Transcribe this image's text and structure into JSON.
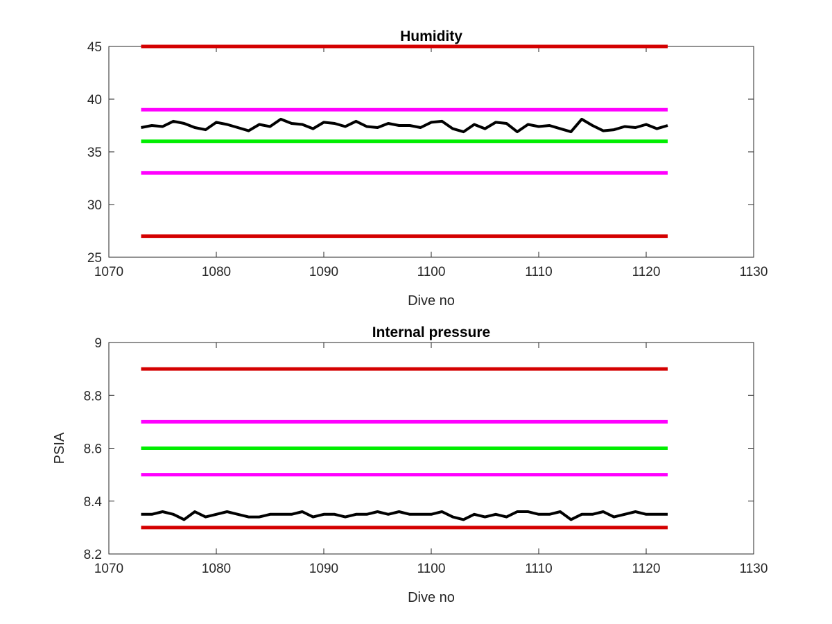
{
  "chart_data": [
    {
      "type": "line",
      "title": "Humidity",
      "xlabel": "Dive no",
      "ylabel": "",
      "xlim": [
        1070,
        1130
      ],
      "ylim": [
        25,
        45
      ],
      "xticks": [
        "1070",
        "1080",
        "1090",
        "1100",
        "1110",
        "1120",
        "1130"
      ],
      "yticks": [
        "25",
        "30",
        "35",
        "40",
        "45"
      ],
      "grid": false,
      "thresholds": [
        {
          "value": 45,
          "color": "#d40000",
          "x": [
            1073,
            1122
          ]
        },
        {
          "value": 39,
          "color": "#ff00ff",
          "x": [
            1073,
            1122
          ]
        },
        {
          "value": 36,
          "color": "#00ee00",
          "x": [
            1073,
            1122
          ]
        },
        {
          "value": 33,
          "color": "#ff00ff",
          "x": [
            1073,
            1122
          ]
        },
        {
          "value": 27,
          "color": "#d40000",
          "x": [
            1073,
            1122
          ]
        }
      ],
      "series": [
        {
          "color": "#000000",
          "x": [
            1073,
            1074,
            1075,
            1076,
            1077,
            1078,
            1079,
            1080,
            1081,
            1082,
            1083,
            1084,
            1085,
            1086,
            1087,
            1088,
            1089,
            1090,
            1091,
            1092,
            1093,
            1094,
            1095,
            1096,
            1097,
            1098,
            1099,
            1100,
            1101,
            1102,
            1103,
            1104,
            1105,
            1106,
            1107,
            1108,
            1109,
            1110,
            1111,
            1112,
            1113,
            1114,
            1115,
            1116,
            1117,
            1118,
            1119,
            1120,
            1121,
            1122
          ],
          "values": [
            37.3,
            37.5,
            37.4,
            37.9,
            37.7,
            37.3,
            37.1,
            37.8,
            37.6,
            37.3,
            37.0,
            37.6,
            37.4,
            38.1,
            37.7,
            37.6,
            37.2,
            37.8,
            37.7,
            37.4,
            37.9,
            37.4,
            37.3,
            37.7,
            37.5,
            37.5,
            37.3,
            37.8,
            37.9,
            37.2,
            36.9,
            37.6,
            37.2,
            37.8,
            37.7,
            36.9,
            37.6,
            37.4,
            37.5,
            37.2,
            36.9,
            38.1,
            37.5,
            37.0,
            37.1,
            37.4,
            37.3,
            37.6,
            37.2,
            37.5
          ]
        }
      ]
    },
    {
      "type": "line",
      "title": "Internal pressure",
      "xlabel": "Dive no",
      "ylabel": "PSIA",
      "xlim": [
        1070,
        1130
      ],
      "ylim": [
        8.2,
        9
      ],
      "xticks": [
        "1070",
        "1080",
        "1090",
        "1100",
        "1110",
        "1120",
        "1130"
      ],
      "yticks": [
        "8.2",
        "8.4",
        "8.6",
        "8.8",
        "9"
      ],
      "grid": false,
      "thresholds": [
        {
          "value": 8.9,
          "color": "#d40000",
          "x": [
            1073,
            1122
          ]
        },
        {
          "value": 8.7,
          "color": "#ff00ff",
          "x": [
            1073,
            1122
          ]
        },
        {
          "value": 8.6,
          "color": "#00ee00",
          "x": [
            1073,
            1122
          ]
        },
        {
          "value": 8.5,
          "color": "#ff00ff",
          "x": [
            1073,
            1122
          ]
        },
        {
          "value": 8.3,
          "color": "#d40000",
          "x": [
            1073,
            1122
          ]
        }
      ],
      "series": [
        {
          "color": "#000000",
          "x": [
            1073,
            1074,
            1075,
            1076,
            1077,
            1078,
            1079,
            1080,
            1081,
            1082,
            1083,
            1084,
            1085,
            1086,
            1087,
            1088,
            1089,
            1090,
            1091,
            1092,
            1093,
            1094,
            1095,
            1096,
            1097,
            1098,
            1099,
            1100,
            1101,
            1102,
            1103,
            1104,
            1105,
            1106,
            1107,
            1108,
            1109,
            1110,
            1111,
            1112,
            1113,
            1114,
            1115,
            1116,
            1117,
            1118,
            1119,
            1120,
            1121,
            1122
          ],
          "values": [
            8.35,
            8.35,
            8.36,
            8.35,
            8.33,
            8.36,
            8.34,
            8.35,
            8.36,
            8.35,
            8.34,
            8.34,
            8.35,
            8.35,
            8.35,
            8.36,
            8.34,
            8.35,
            8.35,
            8.34,
            8.35,
            8.35,
            8.36,
            8.35,
            8.36,
            8.35,
            8.35,
            8.35,
            8.36,
            8.34,
            8.33,
            8.35,
            8.34,
            8.35,
            8.34,
            8.36,
            8.36,
            8.35,
            8.35,
            8.36,
            8.33,
            8.35,
            8.35,
            8.36,
            8.34,
            8.35,
            8.36,
            8.35,
            8.35,
            8.35
          ]
        }
      ]
    }
  ]
}
